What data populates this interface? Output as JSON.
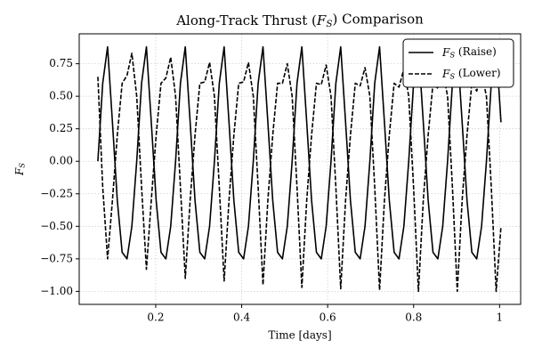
{
  "chart_data": {
    "type": "line",
    "title": "Along-Track Thrust (FS) Comparison",
    "x_label": "Time [days]",
    "y_label": "FS",
    "x": [
      0.0654,
      0.0767,
      0.088,
      0.0993,
      0.1106,
      0.1219,
      0.1332,
      0.1445,
      0.1558,
      0.1671,
      0.1784,
      0.1897,
      0.201,
      0.2123,
      0.2236,
      0.2349,
      0.2462,
      0.2575,
      0.2688,
      0.2801,
      0.2914,
      0.3027,
      0.314,
      0.3253,
      0.3366,
      0.3479,
      0.3592,
      0.3705,
      0.3818,
      0.3931,
      0.4044,
      0.4157,
      0.427,
      0.4383,
      0.4496,
      0.4609,
      0.4722,
      0.4835,
      0.4948,
      0.5061,
      0.5174,
      0.5287,
      0.54,
      0.5513,
      0.5626,
      0.5739,
      0.5852,
      0.5965,
      0.6078,
      0.6191,
      0.6304,
      0.6417,
      0.653,
      0.6643,
      0.6756,
      0.6869,
      0.6982,
      0.7095,
      0.7208,
      0.7321,
      0.7434,
      0.7547,
      0.766,
      0.7773,
      0.7886,
      0.7999,
      0.8112,
      0.8225,
      0.8338,
      0.8451,
      0.8564,
      0.8677,
      0.879,
      0.8903,
      0.9016,
      0.9129,
      0.9242,
      0.9355,
      0.9468,
      0.9581,
      0.9694,
      0.9807,
      0.992,
      1.0033
    ],
    "series": [
      {
        "name": "FS (Raise)",
        "color": "#000000",
        "dash": "solid",
        "values": [
          0.0,
          0.6,
          0.88,
          0.3,
          -0.3,
          -0.7,
          -0.75,
          -0.5,
          0.0,
          0.6,
          0.88,
          0.3,
          -0.3,
          -0.7,
          -0.75,
          -0.5,
          0.0,
          0.6,
          0.88,
          0.3,
          -0.3,
          -0.7,
          -0.75,
          -0.5,
          0.0,
          0.6,
          0.88,
          0.3,
          -0.3,
          -0.7,
          -0.75,
          -0.5,
          0.0,
          0.6,
          0.88,
          0.3,
          -0.3,
          -0.7,
          -0.75,
          -0.5,
          0.0,
          0.6,
          0.88,
          0.3,
          -0.3,
          -0.7,
          -0.75,
          -0.5,
          0.0,
          0.6,
          0.88,
          0.3,
          -0.3,
          -0.7,
          -0.75,
          -0.5,
          0.0,
          0.6,
          0.88,
          0.3,
          -0.3,
          -0.7,
          -0.75,
          -0.5,
          0.0,
          0.6,
          0.88,
          0.3,
          -0.3,
          -0.7,
          -0.75,
          -0.5,
          0.0,
          0.6,
          0.88,
          0.3,
          -0.3,
          -0.7,
          -0.75,
          -0.5,
          0.0,
          0.6,
          0.88,
          0.3
        ]
      },
      {
        "name": "FS (Lower)",
        "color": "#000000",
        "dash": "dashed",
        "values": [
          0.65,
          -0.2,
          -0.75,
          -0.3,
          0.2,
          0.6,
          0.66,
          0.83,
          0.5,
          -0.2,
          -0.83,
          -0.3,
          0.2,
          0.6,
          0.64,
          0.8,
          0.5,
          -0.2,
          -0.9,
          -0.3,
          0.2,
          0.6,
          0.61,
          0.76,
          0.5,
          -0.2,
          -0.92,
          -0.3,
          0.2,
          0.6,
          0.61,
          0.76,
          0.5,
          -0.2,
          -0.95,
          -0.3,
          0.2,
          0.6,
          0.6,
          0.75,
          0.5,
          -0.2,
          -0.97,
          -0.3,
          0.2,
          0.6,
          0.59,
          0.74,
          0.5,
          -0.2,
          -0.98,
          -0.3,
          0.2,
          0.6,
          0.58,
          0.72,
          0.5,
          -0.2,
          -0.99,
          -0.3,
          0.2,
          0.6,
          0.57,
          0.71,
          0.5,
          -0.2,
          -1.0,
          -0.3,
          0.2,
          0.6,
          0.56,
          0.7,
          0.5,
          -0.2,
          -1.0,
          -0.3,
          0.2,
          0.6,
          0.54,
          0.68,
          0.5,
          -0.2,
          -1.0,
          -0.5
        ]
      }
    ],
    "xlim": [
      0.022,
      1.049
    ],
    "ylim": [
      -1.1,
      0.98
    ],
    "xticks": [
      0.2,
      0.4,
      0.6,
      0.8,
      1.0
    ],
    "yticks": [
      {
        "value": -1.0,
        "label": "−1.00"
      },
      {
        "value": -0.75,
        "label": "−0.75"
      },
      {
        "value": -0.5,
        "label": "−0.50"
      },
      {
        "value": -0.25,
        "label": "−0.25"
      },
      {
        "value": 0,
        "label": "0.00"
      },
      {
        "value": 0.25,
        "label": "0.25"
      },
      {
        "value": 0.5,
        "label": "0.50"
      },
      {
        "value": 0.75,
        "label": "0.75"
      }
    ],
    "grid": true,
    "legend": "upper right"
  }
}
